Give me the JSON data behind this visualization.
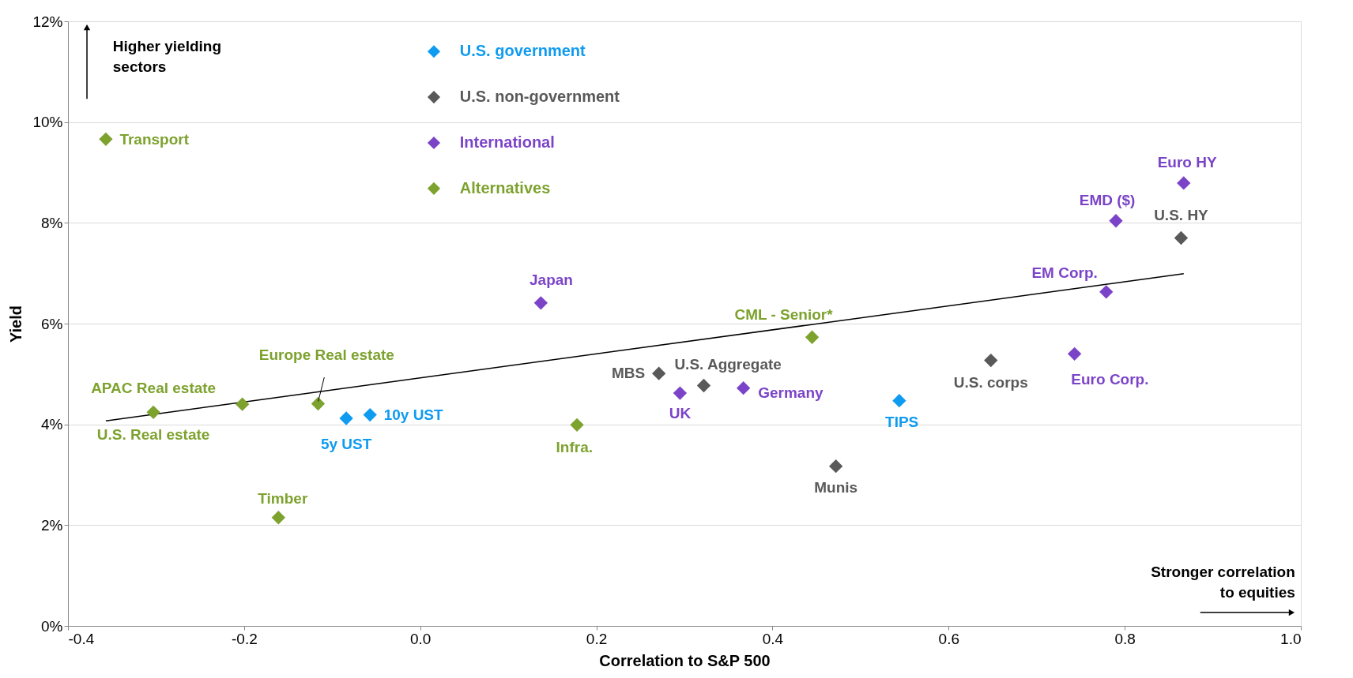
{
  "chart_data": {
    "type": "scatter",
    "xlabel": "Correlation to S&P 500",
    "ylabel": "Yield",
    "xlim": [
      -0.4,
      1.0
    ],
    "ylim": [
      0,
      12
    ],
    "xticks": [
      {
        "value": -0.4,
        "label": "-0.4"
      },
      {
        "value": -0.2,
        "label": "-0.2"
      },
      {
        "value": 0,
        "label": "0.0"
      },
      {
        "value": 0.2,
        "label": "0.2"
      },
      {
        "value": 0.4,
        "label": "0.4"
      },
      {
        "value": 0.6,
        "label": "0.6"
      },
      {
        "value": 0.8,
        "label": "0.8"
      },
      {
        "value": 1.0,
        "label": "1.0"
      }
    ],
    "yticks": [
      {
        "value": 0,
        "label": "0%"
      },
      {
        "value": 2,
        "label": "2%"
      },
      {
        "value": 4,
        "label": "4%"
      },
      {
        "value": 6,
        "label": "6%"
      },
      {
        "value": 8,
        "label": "8%"
      },
      {
        "value": 10,
        "label": "10%"
      },
      {
        "value": 12,
        "label": "12%"
      }
    ],
    "grid": "y",
    "legend": "top",
    "marker": "diamond",
    "series": [
      {
        "name": "U.S. government",
        "color": "#0f9bf0",
        "x": [
          -0.084,
          -0.057,
          0.544
        ],
        "values": [
          4.12,
          4.19,
          4.47
        ]
      },
      {
        "name": "U.S. non-government",
        "color": "#595959",
        "x": [
          0.271,
          0.322,
          0.472,
          0.648,
          0.864
        ],
        "values": [
          5.01,
          4.77,
          3.17,
          5.27,
          7.7
        ]
      },
      {
        "name": "International",
        "color": "#7b44c8",
        "x": [
          0.137,
          0.295,
          0.367,
          0.743,
          0.779,
          0.79,
          0.867
        ],
        "values": [
          6.41,
          4.62,
          4.72,
          5.4,
          6.63,
          8.04,
          8.79
        ]
      },
      {
        "name": "Alternatives",
        "color": "#7da22e",
        "x": [
          -0.357,
          -0.303,
          -0.202,
          -0.116,
          -0.161,
          0.178,
          0.445
        ],
        "values": [
          9.66,
          4.24,
          4.4,
          4.41,
          2.15,
          3.99,
          5.73
        ]
      },
      {
        "type": "line",
        "color": "#000000",
        "marker": "none",
        "x": [
          -0.357,
          0.867
        ],
        "values": [
          4.07,
          6.99
        ]
      }
    ],
    "annotations": [
      {
        "text": "5y UST",
        "x": -0.084,
        "y": 4.12
      },
      {
        "text": "10y UST",
        "x": -0.057,
        "y": 4.19
      },
      {
        "text": "TIPS",
        "x": 0.544,
        "y": 4.47
      },
      {
        "text": "MBS",
        "x": 0.271,
        "y": 5.01
      },
      {
        "text": "U.S. Aggregate",
        "x": 0.322,
        "y": 4.77
      },
      {
        "text": "Munis",
        "x": 0.472,
        "y": 3.17
      },
      {
        "text": "U.S. corps",
        "x": 0.648,
        "y": 5.27
      },
      {
        "text": "U.S. HY",
        "x": 0.864,
        "y": 7.7
      },
      {
        "text": "Japan",
        "x": 0.137,
        "y": 6.41
      },
      {
        "text": "UK",
        "x": 0.295,
        "y": 4.62
      },
      {
        "text": "Germany",
        "x": 0.367,
        "y": 4.72
      },
      {
        "text": "Euro Corp.",
        "x": 0.743,
        "y": 5.4
      },
      {
        "text": "EM Corp.",
        "x": 0.779,
        "y": 6.63
      },
      {
        "text": "EMD ($)",
        "x": 0.79,
        "y": 8.04
      },
      {
        "text": "Euro HY",
        "x": 0.867,
        "y": 8.79
      },
      {
        "text": "Transport",
        "x": -0.357,
        "y": 9.66
      },
      {
        "text": "U.S. Real estate",
        "x": -0.303,
        "y": 4.24
      },
      {
        "text": "APAC Real estate",
        "x": -0.202,
        "y": 4.4
      },
      {
        "text": "Europe Real estate",
        "x": -0.116,
        "y": 4.41
      },
      {
        "text": "Timber",
        "x": -0.161,
        "y": 2.15
      },
      {
        "text": "Infra.",
        "x": 0.178,
        "y": 3.99
      },
      {
        "text": "CML - Senior*",
        "x": 0.445,
        "y": 5.73
      },
      "Higher yielding\nsectors",
      "Stronger correlation\nto equities"
    ]
  }
}
